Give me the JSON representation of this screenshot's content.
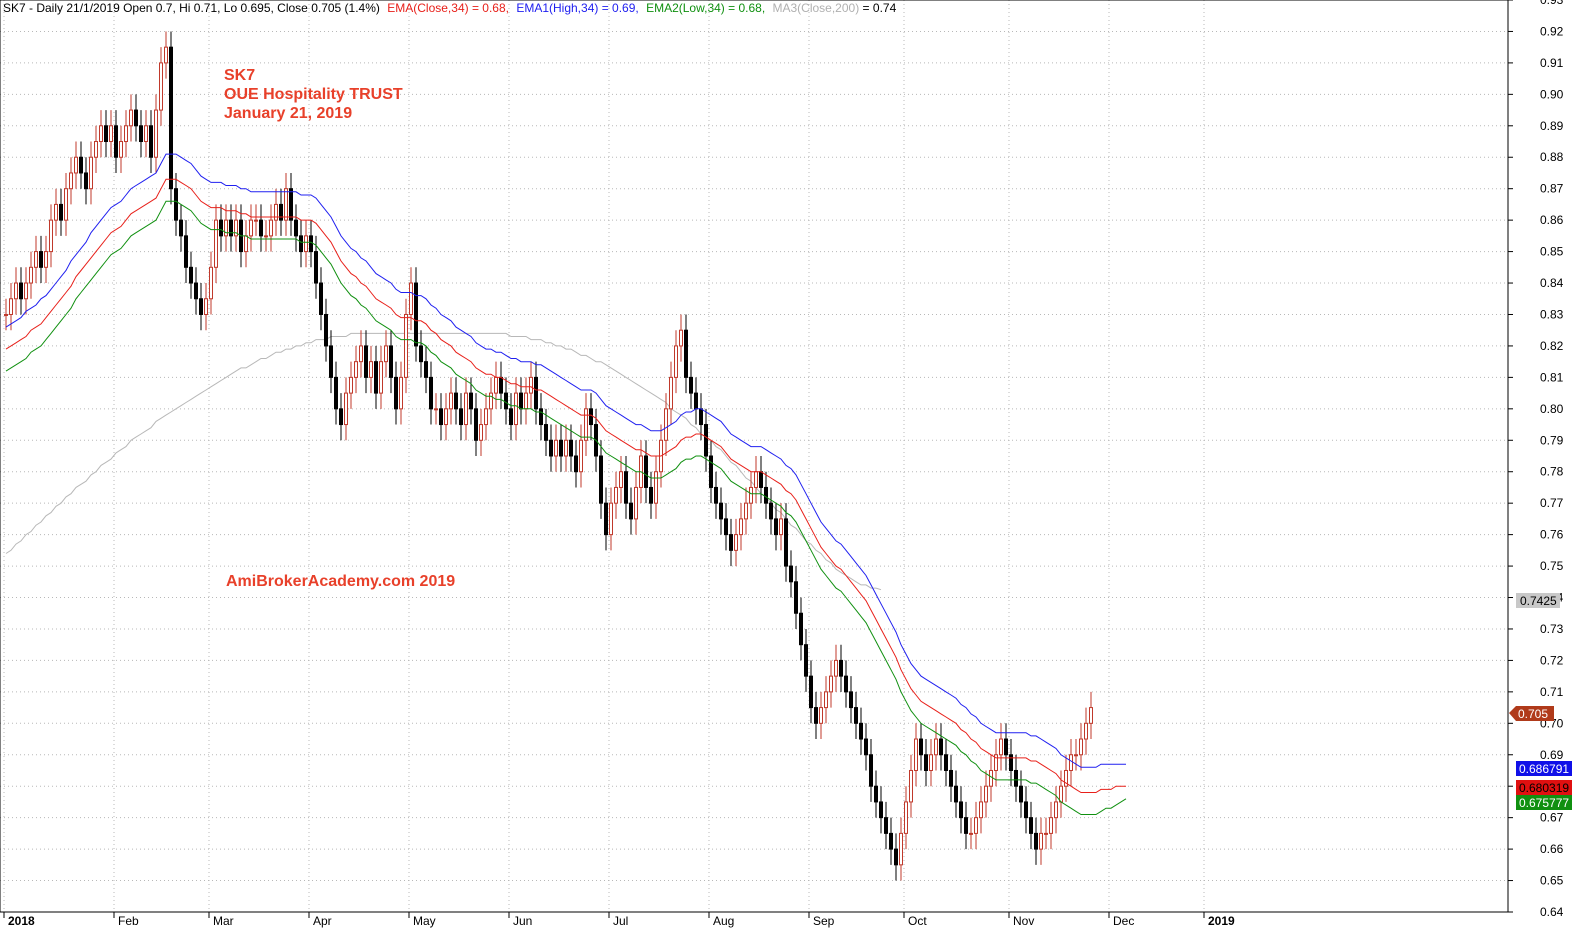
{
  "header": {
    "prefix": "SK7 - Daily 21/1/2019 Open 0.7, Hi 0.71, Lo 0.695, Close 0.705 (1.4%)",
    "ema": "EMA(Close,34) = 0.68,",
    "ema1": "EMA1(High,34) = 0.69,",
    "ema2": "EMA2(Low,34) = 0.68,",
    "ma3_name": "MA3(Close,200)",
    "ma3_val": " = 0.74"
  },
  "annotations": {
    "ticker": "SK7",
    "name": "OUE Hospitality TRUST",
    "date": "January 21, 2019",
    "watermark": "AmiBrokerAcademy.com  2019"
  },
  "price_tags": {
    "ma3": "0.7425",
    "close": "0.705",
    "ema1": "0.686791",
    "ema": "0.680319",
    "ema2": "0.675777"
  },
  "colors": {
    "up": "#c0392b",
    "down": "#000000",
    "ema": "#e8201a",
    "ema1": "#2020f0",
    "ema2": "#109010",
    "ma3": "#b8b8b8",
    "ann": "#e8402a"
  },
  "chart_data": {
    "type": "candlestick",
    "ylim": [
      0.64,
      0.93
    ],
    "yticks": [
      "0.64",
      "0.65",
      "0.66",
      "0.67",
      "0.68",
      "0.69",
      "0.70",
      "0.71",
      "0.72",
      "0.73",
      "0.74",
      "0.75",
      "0.76",
      "0.77",
      "0.78",
      "0.79",
      "0.80",
      "0.81",
      "0.82",
      "0.83",
      "0.84",
      "0.85",
      "0.86",
      "0.87",
      "0.88",
      "0.89",
      "0.90",
      "0.91",
      "0.92",
      "0.93"
    ],
    "months": [
      {
        "label": "2018",
        "bold": true
      },
      {
        "label": "Feb",
        "bold": false
      },
      {
        "label": "Mar",
        "bold": false
      },
      {
        "label": "Apr",
        "bold": false
      },
      {
        "label": "May",
        "bold": false
      },
      {
        "label": "Jun",
        "bold": false
      },
      {
        "label": "Jul",
        "bold": false
      },
      {
        "label": "Aug",
        "bold": false
      },
      {
        "label": "Sep",
        "bold": false
      },
      {
        "label": "Oct",
        "bold": false
      },
      {
        "label": "Nov",
        "bold": false
      },
      {
        "label": "Dec",
        "bold": false
      },
      {
        "label": "2019",
        "bold": true
      }
    ],
    "month_start_day": [
      0,
      22,
      41,
      61,
      81,
      101,
      121,
      141,
      161,
      180,
      201,
      221,
      240
    ],
    "trading_days": 254,
    "close": [
      0.83,
      0.835,
      0.84,
      0.835,
      0.84,
      0.845,
      0.85,
      0.845,
      0.85,
      0.86,
      0.865,
      0.86,
      0.87,
      0.875,
      0.88,
      0.875,
      0.87,
      0.88,
      0.885,
      0.89,
      0.885,
      0.89,
      0.88,
      0.885,
      0.89,
      0.895,
      0.89,
      0.885,
      0.89,
      0.88,
      0.895,
      0.91,
      0.915,
      0.87,
      0.86,
      0.855,
      0.845,
      0.84,
      0.835,
      0.83,
      0.835,
      0.845,
      0.86,
      0.855,
      0.86,
      0.855,
      0.86,
      0.85,
      0.855,
      0.86,
      0.86,
      0.855,
      0.855,
      0.86,
      0.865,
      0.86,
      0.87,
      0.86,
      0.855,
      0.85,
      0.855,
      0.85,
      0.84,
      0.83,
      0.82,
      0.81,
      0.8,
      0.795,
      0.805,
      0.81,
      0.815,
      0.82,
      0.81,
      0.815,
      0.805,
      0.815,
      0.82,
      0.81,
      0.8,
      0.81,
      0.83,
      0.84,
      0.82,
      0.815,
      0.81,
      0.8,
      0.8,
      0.795,
      0.8,
      0.805,
      0.8,
      0.795,
      0.805,
      0.8,
      0.79,
      0.795,
      0.8,
      0.805,
      0.81,
      0.805,
      0.8,
      0.795,
      0.805,
      0.8,
      0.805,
      0.81,
      0.8,
      0.795,
      0.79,
      0.785,
      0.79,
      0.785,
      0.79,
      0.785,
      0.78,
      0.79,
      0.8,
      0.795,
      0.785,
      0.77,
      0.76,
      0.77,
      0.775,
      0.78,
      0.77,
      0.765,
      0.775,
      0.785,
      0.775,
      0.77,
      0.78,
      0.79,
      0.8,
      0.81,
      0.82,
      0.825,
      0.81,
      0.805,
      0.8,
      0.795,
      0.785,
      0.775,
      0.77,
      0.765,
      0.76,
      0.755,
      0.76,
      0.765,
      0.77,
      0.775,
      0.78,
      0.775,
      0.77,
      0.765,
      0.76,
      0.765,
      0.75,
      0.745,
      0.735,
      0.725,
      0.715,
      0.705,
      0.7,
      0.705,
      0.71,
      0.715,
      0.72,
      0.715,
      0.71,
      0.705,
      0.7,
      0.695,
      0.69,
      0.68,
      0.675,
      0.67,
      0.665,
      0.66,
      0.655,
      0.665,
      0.675,
      0.685,
      0.695,
      0.69,
      0.685,
      0.69,
      0.695,
      0.69,
      0.685,
      0.68,
      0.675,
      0.67,
      0.665,
      0.665,
      0.67,
      0.675,
      0.68,
      0.685,
      0.69,
      0.695,
      0.69,
      0.685,
      0.68,
      0.675,
      0.67,
      0.665,
      0.66,
      0.665,
      0.665,
      0.67,
      0.675,
      0.68,
      0.685,
      0.69,
      0.69,
      0.695,
      0.7,
      0.705
    ],
    "ema_close_34": [
      0.819,
      0.82,
      0.821,
      0.822,
      0.823,
      0.825,
      0.826,
      0.827,
      0.829,
      0.831,
      0.833,
      0.835,
      0.837,
      0.839,
      0.842,
      0.844,
      0.846,
      0.848,
      0.85,
      0.852,
      0.854,
      0.856,
      0.857,
      0.858,
      0.86,
      0.862,
      0.863,
      0.864,
      0.865,
      0.866,
      0.867,
      0.87,
      0.873,
      0.873,
      0.873,
      0.872,
      0.871,
      0.87,
      0.868,
      0.866,
      0.865,
      0.864,
      0.864,
      0.864,
      0.863,
      0.863,
      0.863,
      0.862,
      0.862,
      0.861,
      0.861,
      0.861,
      0.861,
      0.861,
      0.861,
      0.861,
      0.861,
      0.861,
      0.861,
      0.86,
      0.86,
      0.86,
      0.859,
      0.857,
      0.855,
      0.853,
      0.85,
      0.847,
      0.845,
      0.843,
      0.842,
      0.84,
      0.839,
      0.837,
      0.835,
      0.834,
      0.833,
      0.832,
      0.83,
      0.829,
      0.829,
      0.829,
      0.828,
      0.828,
      0.827,
      0.825,
      0.824,
      0.822,
      0.821,
      0.82,
      0.818,
      0.817,
      0.816,
      0.815,
      0.813,
      0.812,
      0.811,
      0.811,
      0.81,
      0.81,
      0.809,
      0.808,
      0.808,
      0.807,
      0.807,
      0.807,
      0.806,
      0.806,
      0.805,
      0.804,
      0.803,
      0.802,
      0.801,
      0.8,
      0.799,
      0.798,
      0.798,
      0.798,
      0.797,
      0.795,
      0.793,
      0.792,
      0.791,
      0.79,
      0.789,
      0.788,
      0.787,
      0.787,
      0.786,
      0.785,
      0.785,
      0.785,
      0.786,
      0.787,
      0.788,
      0.79,
      0.791,
      0.791,
      0.792,
      0.792,
      0.791,
      0.79,
      0.789,
      0.788,
      0.786,
      0.784,
      0.783,
      0.782,
      0.781,
      0.78,
      0.78,
      0.78,
      0.779,
      0.778,
      0.777,
      0.776,
      0.774,
      0.773,
      0.771,
      0.768,
      0.765,
      0.762,
      0.759,
      0.756,
      0.754,
      0.752,
      0.75,
      0.749,
      0.747,
      0.745,
      0.743,
      0.741,
      0.739,
      0.736,
      0.733,
      0.73,
      0.727,
      0.724,
      0.721,
      0.717,
      0.714,
      0.711,
      0.709,
      0.707,
      0.706,
      0.705,
      0.704,
      0.703,
      0.702,
      0.701,
      0.7,
      0.698,
      0.697,
      0.695,
      0.694,
      0.692,
      0.691,
      0.69,
      0.689,
      0.689,
      0.689,
      0.689,
      0.689,
      0.689,
      0.689,
      0.688,
      0.688,
      0.687,
      0.686,
      0.685,
      0.684,
      0.682,
      0.681,
      0.68,
      0.679,
      0.678,
      0.678,
      0.678,
      0.678,
      0.679,
      0.679,
      0.679,
      0.68,
      0.68,
      0.68
    ],
    "ema_high_34": [
      0.826,
      0.827,
      0.828,
      0.829,
      0.831,
      0.832,
      0.833,
      0.835,
      0.836,
      0.838,
      0.84,
      0.842,
      0.844,
      0.847,
      0.849,
      0.851,
      0.853,
      0.856,
      0.858,
      0.86,
      0.862,
      0.864,
      0.865,
      0.866,
      0.868,
      0.87,
      0.871,
      0.872,
      0.873,
      0.874,
      0.875,
      0.878,
      0.881,
      0.881,
      0.881,
      0.88,
      0.879,
      0.878,
      0.876,
      0.874,
      0.873,
      0.872,
      0.872,
      0.872,
      0.871,
      0.871,
      0.871,
      0.87,
      0.87,
      0.869,
      0.869,
      0.869,
      0.869,
      0.869,
      0.869,
      0.869,
      0.869,
      0.869,
      0.869,
      0.868,
      0.868,
      0.868,
      0.867,
      0.865,
      0.863,
      0.861,
      0.858,
      0.855,
      0.853,
      0.851,
      0.85,
      0.848,
      0.847,
      0.845,
      0.843,
      0.842,
      0.841,
      0.84,
      0.838,
      0.837,
      0.837,
      0.837,
      0.836,
      0.836,
      0.835,
      0.833,
      0.832,
      0.83,
      0.829,
      0.828,
      0.826,
      0.825,
      0.824,
      0.823,
      0.821,
      0.82,
      0.819,
      0.819,
      0.818,
      0.818,
      0.817,
      0.816,
      0.816,
      0.815,
      0.815,
      0.815,
      0.814,
      0.814,
      0.813,
      0.812,
      0.811,
      0.81,
      0.809,
      0.808,
      0.807,
      0.806,
      0.806,
      0.806,
      0.805,
      0.803,
      0.801,
      0.8,
      0.799,
      0.798,
      0.797,
      0.796,
      0.795,
      0.795,
      0.794,
      0.793,
      0.793,
      0.793,
      0.794,
      0.795,
      0.796,
      0.798,
      0.799,
      0.799,
      0.8,
      0.8,
      0.799,
      0.798,
      0.797,
      0.796,
      0.794,
      0.792,
      0.791,
      0.79,
      0.789,
      0.788,
      0.788,
      0.788,
      0.787,
      0.786,
      0.785,
      0.784,
      0.782,
      0.781,
      0.779,
      0.776,
      0.773,
      0.77,
      0.767,
      0.764,
      0.762,
      0.76,
      0.758,
      0.757,
      0.755,
      0.753,
      0.751,
      0.749,
      0.747,
      0.744,
      0.741,
      0.738,
      0.735,
      0.732,
      0.729,
      0.725,
      0.722,
      0.719,
      0.717,
      0.715,
      0.714,
      0.713,
      0.712,
      0.711,
      0.71,
      0.709,
      0.708,
      0.706,
      0.705,
      0.703,
      0.702,
      0.7,
      0.699,
      0.698,
      0.697,
      0.697,
      0.697,
      0.697,
      0.697,
      0.697,
      0.697,
      0.696,
      0.696,
      0.695,
      0.694,
      0.693,
      0.692,
      0.69,
      0.689,
      0.688,
      0.687,
      0.686,
      0.686,
      0.686,
      0.686,
      0.687,
      0.687,
      0.687,
      0.687,
      0.687,
      0.687
    ],
    "ema_low_34": [
      0.812,
      0.813,
      0.814,
      0.815,
      0.816,
      0.818,
      0.819,
      0.82,
      0.822,
      0.824,
      0.826,
      0.828,
      0.83,
      0.832,
      0.835,
      0.837,
      0.839,
      0.841,
      0.843,
      0.845,
      0.847,
      0.849,
      0.85,
      0.851,
      0.853,
      0.855,
      0.856,
      0.857,
      0.858,
      0.859,
      0.86,
      0.863,
      0.866,
      0.866,
      0.866,
      0.865,
      0.864,
      0.863,
      0.861,
      0.859,
      0.858,
      0.857,
      0.857,
      0.857,
      0.856,
      0.856,
      0.856,
      0.855,
      0.855,
      0.854,
      0.854,
      0.854,
      0.854,
      0.854,
      0.854,
      0.854,
      0.854,
      0.854,
      0.854,
      0.853,
      0.853,
      0.853,
      0.852,
      0.85,
      0.848,
      0.846,
      0.843,
      0.84,
      0.838,
      0.836,
      0.835,
      0.833,
      0.832,
      0.83,
      0.828,
      0.827,
      0.826,
      0.825,
      0.823,
      0.822,
      0.822,
      0.822,
      0.821,
      0.821,
      0.82,
      0.818,
      0.817,
      0.815,
      0.814,
      0.813,
      0.811,
      0.81,
      0.809,
      0.808,
      0.806,
      0.805,
      0.804,
      0.804,
      0.803,
      0.803,
      0.802,
      0.801,
      0.801,
      0.8,
      0.8,
      0.8,
      0.799,
      0.799,
      0.798,
      0.797,
      0.796,
      0.795,
      0.794,
      0.793,
      0.792,
      0.791,
      0.791,
      0.791,
      0.79,
      0.788,
      0.786,
      0.785,
      0.784,
      0.783,
      0.782,
      0.781,
      0.78,
      0.78,
      0.779,
      0.778,
      0.778,
      0.778,
      0.779,
      0.78,
      0.781,
      0.783,
      0.784,
      0.784,
      0.785,
      0.785,
      0.784,
      0.783,
      0.782,
      0.781,
      0.779,
      0.777,
      0.776,
      0.775,
      0.774,
      0.773,
      0.773,
      0.773,
      0.772,
      0.771,
      0.77,
      0.769,
      0.767,
      0.766,
      0.764,
      0.761,
      0.758,
      0.755,
      0.752,
      0.749,
      0.747,
      0.745,
      0.743,
      0.742,
      0.74,
      0.738,
      0.736,
      0.734,
      0.732,
      0.729,
      0.726,
      0.723,
      0.72,
      0.717,
      0.714,
      0.71,
      0.707,
      0.704,
      0.702,
      0.7,
      0.699,
      0.698,
      0.697,
      0.696,
      0.695,
      0.694,
      0.693,
      0.691,
      0.69,
      0.688,
      0.687,
      0.685,
      0.684,
      0.683,
      0.682,
      0.682,
      0.682,
      0.682,
      0.682,
      0.682,
      0.682,
      0.681,
      0.681,
      0.68,
      0.679,
      0.678,
      0.677,
      0.675,
      0.674,
      0.673,
      0.672,
      0.671,
      0.671,
      0.671,
      0.671,
      0.672,
      0.673,
      0.673,
      0.674,
      0.675,
      0.676
    ],
    "ma3_close_200": [
      0.754,
      0.755,
      0.757,
      0.758,
      0.76,
      0.761,
      0.763,
      0.764,
      0.766,
      0.767,
      0.769,
      0.77,
      0.772,
      0.773,
      0.775,
      0.776,
      0.777,
      0.779,
      0.78,
      0.782,
      0.783,
      0.784,
      0.786,
      0.787,
      0.788,
      0.79,
      0.791,
      0.792,
      0.793,
      0.794,
      0.796,
      0.797,
      0.798,
      0.799,
      0.8,
      0.801,
      0.802,
      0.803,
      0.804,
      0.805,
      0.806,
      0.807,
      0.808,
      0.809,
      0.81,
      0.811,
      0.812,
      0.813,
      0.813,
      0.814,
      0.815,
      0.816,
      0.816,
      0.817,
      0.818,
      0.818,
      0.819,
      0.819,
      0.82,
      0.82,
      0.821,
      0.821,
      0.822,
      0.822,
      0.822,
      0.823,
      0.823,
      0.823,
      0.823,
      0.824,
      0.824,
      0.824,
      0.824,
      0.824,
      0.824,
      0.824,
      0.824,
      0.824,
      0.824,
      0.824,
      0.824,
      0.824,
      0.824,
      0.824,
      0.824,
      0.824,
      0.824,
      0.824,
      0.824,
      0.824,
      0.824,
      0.824,
      0.824,
      0.824,
      0.824,
      0.824,
      0.824,
      0.824,
      0.824,
      0.824,
      0.824,
      0.823,
      0.823,
      0.823,
      0.823,
      0.822,
      0.822,
      0.822,
      0.821,
      0.821,
      0.82,
      0.82,
      0.819,
      0.819,
      0.818,
      0.817,
      0.817,
      0.816,
      0.815,
      0.815,
      0.814,
      0.813,
      0.812,
      0.811,
      0.81,
      0.809,
      0.808,
      0.807,
      0.806,
      0.805,
      0.804,
      0.803,
      0.802,
      0.8,
      0.799,
      0.798,
      0.797,
      0.795,
      0.794,
      0.792,
      0.791,
      0.79,
      0.788,
      0.787,
      0.785,
      0.783,
      0.782,
      0.78,
      0.778,
      0.777,
      0.775,
      0.773,
      0.772,
      0.77,
      0.768,
      0.767,
      0.765,
      0.763,
      0.762,
      0.76,
      0.758,
      0.757,
      0.755,
      0.754,
      0.752,
      0.751,
      0.749,
      0.748,
      0.747,
      0.746,
      0.745,
      0.744,
      0.744,
      0.743,
      0.743,
      0.7425
    ]
  }
}
